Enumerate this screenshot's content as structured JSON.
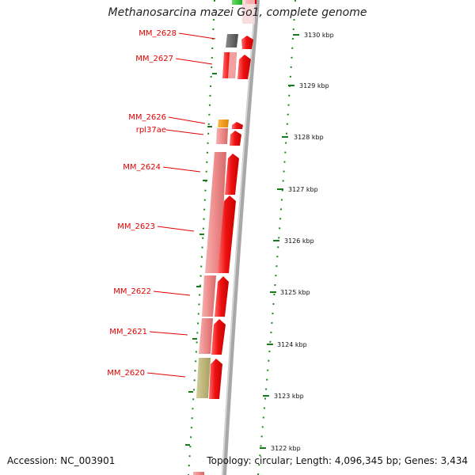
{
  "title": "Methanosarcina mazei Go1, complete genome",
  "footer": {
    "accession": "Accession: NC_003901",
    "summary": "Topology: circular; Length: 4,096,345 bp; Genes: 3,434"
  },
  "colors": {
    "label": "#e00000",
    "forward_cds": "#ee1111",
    "gene_pink": "#ee8a8a",
    "olive": "#bdb57a",
    "orange": "#f39a1c",
    "gray_gene": "#666666",
    "green_gene": "#33cc33",
    "backbone": "#a8a8a8",
    "dots": "#1a8a1a"
  },
  "map": {
    "ticks": [
      "3130 kbp",
      "3129 kbp",
      "3128 kbp",
      "3127 kbp",
      "3126 kbp",
      "3125 kbp",
      "3124 kbp",
      "3123 kbp",
      "3122 kbp"
    ],
    "genes": [
      {
        "label": "MM_2628"
      },
      {
        "label": "MM_2627"
      },
      {
        "label": "MM_2626"
      },
      {
        "label": "rpl37ae"
      },
      {
        "label": "MM_2624"
      },
      {
        "label": "MM_2623"
      },
      {
        "label": "MM_2622"
      },
      {
        "label": "MM_2621"
      },
      {
        "label": "MM_2620"
      }
    ]
  }
}
